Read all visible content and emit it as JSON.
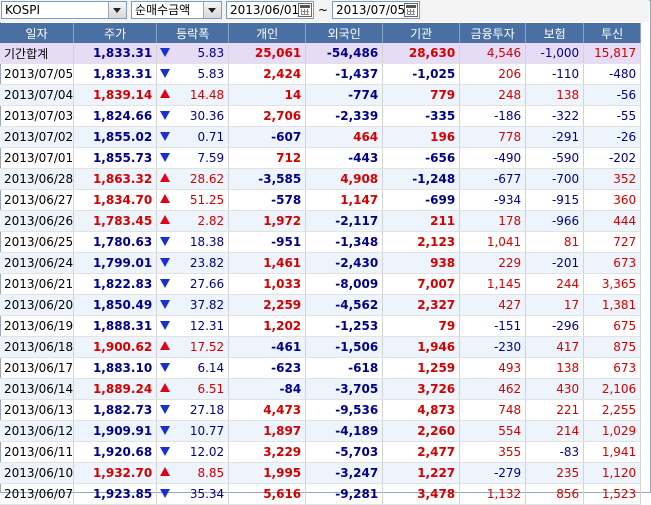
{
  "toolbar": {
    "market": "KOSPI",
    "type": "순매수금액",
    "date_from": "2013/06/01",
    "date_sep": "~",
    "date_to": "2013/07/05"
  },
  "colors": {
    "header_bg": "#4a6fa3",
    "up": "#d40000",
    "down": "#00008b",
    "summary_bg": "#e6dcf5"
  },
  "table": {
    "headers": [
      "일자",
      "주가",
      "등락폭",
      "개인",
      "외국인",
      "기관",
      "금융투자",
      "보험",
      "투신"
    ],
    "rows": [
      {
        "date": "기간합계",
        "price": "1,833.31",
        "dir": "down",
        "chg": "5.83",
        "ind": "25,061",
        "frn": "-54,486",
        "inst": "28,630",
        "fin": "4,546",
        "ins": "-1,000",
        "inv": "15,817"
      },
      {
        "date": "2013/07/05",
        "price": "1,833.31",
        "dir": "down",
        "chg": "5.83",
        "ind": "2,424",
        "frn": "-1,437",
        "inst": "-1,025",
        "fin": "206",
        "ins": "-110",
        "inv": "-480"
      },
      {
        "date": "2013/07/04",
        "price": "1,839.14",
        "dir": "up",
        "chg": "14.48",
        "ind": "14",
        "frn": "-774",
        "inst": "779",
        "fin": "248",
        "ins": "138",
        "inv": "-56"
      },
      {
        "date": "2013/07/03",
        "price": "1,824.66",
        "dir": "down",
        "chg": "30.36",
        "ind": "2,706",
        "frn": "-2,339",
        "inst": "-335",
        "fin": "-186",
        "ins": "-322",
        "inv": "-55"
      },
      {
        "date": "2013/07/02",
        "price": "1,855.02",
        "dir": "down",
        "chg": "0.71",
        "ind": "-607",
        "frn": "464",
        "inst": "196",
        "fin": "778",
        "ins": "-291",
        "inv": "-26"
      },
      {
        "date": "2013/07/01",
        "price": "1,855.73",
        "dir": "down",
        "chg": "7.59",
        "ind": "712",
        "frn": "-443",
        "inst": "-656",
        "fin": "-490",
        "ins": "-590",
        "inv": "-202"
      },
      {
        "date": "2013/06/28",
        "price": "1,863.32",
        "dir": "up",
        "chg": "28.62",
        "ind": "-3,585",
        "frn": "4,908",
        "inst": "-1,248",
        "fin": "-677",
        "ins": "-700",
        "inv": "352"
      },
      {
        "date": "2013/06/27",
        "price": "1,834.70",
        "dir": "up",
        "chg": "51.25",
        "ind": "-578",
        "frn": "1,147",
        "inst": "-699",
        "fin": "-934",
        "ins": "-915",
        "inv": "360"
      },
      {
        "date": "2013/06/26",
        "price": "1,783.45",
        "dir": "up",
        "chg": "2.82",
        "ind": "1,972",
        "frn": "-2,117",
        "inst": "211",
        "fin": "178",
        "ins": "-966",
        "inv": "444"
      },
      {
        "date": "2013/06/25",
        "price": "1,780.63",
        "dir": "down",
        "chg": "18.38",
        "ind": "-951",
        "frn": "-1,348",
        "inst": "2,123",
        "fin": "1,041",
        "ins": "81",
        "inv": "727"
      },
      {
        "date": "2013/06/24",
        "price": "1,799.01",
        "dir": "down",
        "chg": "23.82",
        "ind": "1,461",
        "frn": "-2,430",
        "inst": "938",
        "fin": "229",
        "ins": "-201",
        "inv": "673"
      },
      {
        "date": "2013/06/21",
        "price": "1,822.83",
        "dir": "down",
        "chg": "27.66",
        "ind": "1,033",
        "frn": "-8,009",
        "inst": "7,007",
        "fin": "1,145",
        "ins": "244",
        "inv": "3,365"
      },
      {
        "date": "2013/06/20",
        "price": "1,850.49",
        "dir": "down",
        "chg": "37.82",
        "ind": "2,259",
        "frn": "-4,562",
        "inst": "2,327",
        "fin": "427",
        "ins": "17",
        "inv": "1,381"
      },
      {
        "date": "2013/06/19",
        "price": "1,888.31",
        "dir": "down",
        "chg": "12.31",
        "ind": "1,202",
        "frn": "-1,253",
        "inst": "79",
        "fin": "-151",
        "ins": "-296",
        "inv": "675"
      },
      {
        "date": "2013/06/18",
        "price": "1,900.62",
        "dir": "up",
        "chg": "17.52",
        "ind": "-461",
        "frn": "-1,506",
        "inst": "1,946",
        "fin": "-230",
        "ins": "417",
        "inv": "875"
      },
      {
        "date": "2013/06/17",
        "price": "1,883.10",
        "dir": "down",
        "chg": "6.14",
        "ind": "-623",
        "frn": "-618",
        "inst": "1,259",
        "fin": "493",
        "ins": "138",
        "inv": "673"
      },
      {
        "date": "2013/06/14",
        "price": "1,889.24",
        "dir": "up",
        "chg": "6.51",
        "ind": "-84",
        "frn": "-3,705",
        "inst": "3,726",
        "fin": "462",
        "ins": "430",
        "inv": "2,106"
      },
      {
        "date": "2013/06/13",
        "price": "1,882.73",
        "dir": "down",
        "chg": "27.18",
        "ind": "4,473",
        "frn": "-9,536",
        "inst": "4,873",
        "fin": "748",
        "ins": "221",
        "inv": "2,255"
      },
      {
        "date": "2013/06/12",
        "price": "1,909.91",
        "dir": "down",
        "chg": "10.77",
        "ind": "1,897",
        "frn": "-4,189",
        "inst": "2,260",
        "fin": "554",
        "ins": "214",
        "inv": "1,029"
      },
      {
        "date": "2013/06/11",
        "price": "1,920.68",
        "dir": "down",
        "chg": "12.02",
        "ind": "3,229",
        "frn": "-5,703",
        "inst": "2,477",
        "fin": "355",
        "ins": "-83",
        "inv": "1,941"
      },
      {
        "date": "2013/06/10",
        "price": "1,932.70",
        "dir": "up",
        "chg": "8.85",
        "ind": "1,995",
        "frn": "-3,247",
        "inst": "1,227",
        "fin": "-279",
        "ins": "235",
        "inv": "1,120"
      },
      {
        "date": "2013/06/07",
        "price": "1,923.85",
        "dir": "down",
        "chg": "35.34",
        "ind": "5,616",
        "frn": "-9,281",
        "inst": "3,478",
        "fin": "1,132",
        "ins": "856",
        "inv": "1,523"
      }
    ]
  }
}
